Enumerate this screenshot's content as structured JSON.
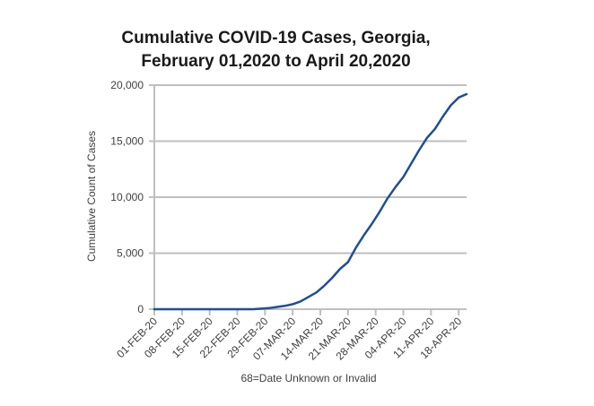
{
  "chart_data": {
    "type": "line",
    "title_lines": [
      "Cumulative COVID-19 Cases, Georgia,",
      "February 01,2020  to  April 20,2020"
    ],
    "ylabel": "Cumulative Count of Cases",
    "xlabel": "68=Date Unknown or Invalid",
    "ylim": [
      0,
      20000
    ],
    "y_ticks": [
      0,
      5000,
      10000,
      15000,
      20000
    ],
    "y_tick_labels": [
      "0",
      "5,000",
      "10,000",
      "15,000",
      "20,000"
    ],
    "grid": "horizontal",
    "x_tick_labels": [
      "01-FEB-20",
      "08-FEB-20",
      "15-FEB-20",
      "22-FEB-20",
      "29-FEB-20",
      "07-MAR-20",
      "14-MAR-20",
      "21-MAR-20",
      "28-MAR-20",
      "04-APR-20",
      "11-APR-20",
      "18-APR-20"
    ],
    "x_tick_dates": [
      "2020-02-01",
      "2020-02-08",
      "2020-02-15",
      "2020-02-22",
      "2020-02-29",
      "2020-03-07",
      "2020-03-14",
      "2020-03-21",
      "2020-03-28",
      "2020-04-04",
      "2020-04-11",
      "2020-04-18"
    ],
    "x_range": [
      "2020-02-01",
      "2020-04-20"
    ],
    "line_color": "#1f4e96",
    "series": [
      {
        "dates": [
          "2020-02-01",
          "2020-02-10",
          "2020-02-20",
          "2020-02-26",
          "2020-02-28",
          "2020-03-01",
          "2020-03-03",
          "2020-03-05",
          "2020-03-07",
          "2020-03-09",
          "2020-03-11",
          "2020-03-13",
          "2020-03-15",
          "2020-03-17",
          "2020-03-19",
          "2020-03-21",
          "2020-03-23",
          "2020-03-25",
          "2020-03-27",
          "2020-03-29",
          "2020-03-31",
          "2020-04-02",
          "2020-04-04",
          "2020-04-06",
          "2020-04-08",
          "2020-04-10",
          "2020-04-12",
          "2020-04-14",
          "2020-04-16",
          "2020-04-18",
          "2020-04-20"
        ],
        "values": [
          0,
          0,
          0,
          0,
          50,
          100,
          200,
          300,
          450,
          700,
          1100,
          1500,
          2100,
          2800,
          3600,
          4200,
          5500,
          6600,
          7600,
          8700,
          9900,
          10900,
          11800,
          13000,
          14200,
          15300,
          16100,
          17200,
          18200,
          18900,
          19200
        ]
      }
    ]
  }
}
